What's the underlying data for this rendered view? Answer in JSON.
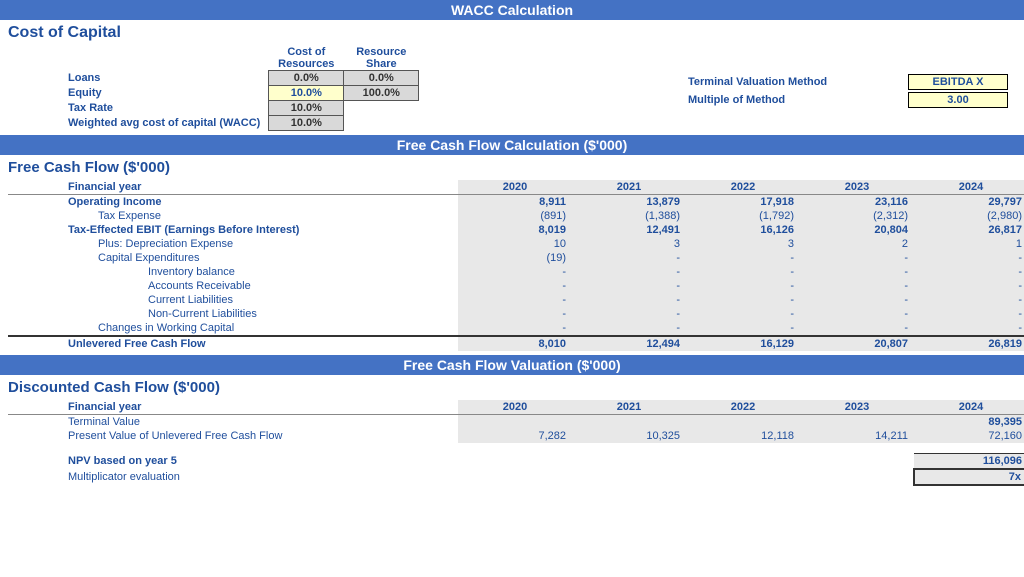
{
  "banners": {
    "wacc": "WACC Calculation",
    "fcf_calc": "Free Cash Flow Calculation ($'000)",
    "fcf_val": "Free Cash Flow Valuation ($'000)"
  },
  "cost_of_capital": {
    "title": "Cost of Capital",
    "headers": {
      "cost": "Cost of Resources",
      "share": "Resource Share"
    },
    "rows": [
      {
        "label": "Loans",
        "cost": "0.0%",
        "share": "0.0%",
        "cost_style": "grey",
        "share_style": "grey"
      },
      {
        "label": "Equity",
        "cost": "10.0%",
        "share": "100.0%",
        "cost_style": "yellow",
        "share_style": "grey"
      },
      {
        "label": "Tax Rate",
        "cost": "10.0%",
        "share": "",
        "cost_style": "grey",
        "share_style": "empty"
      },
      {
        "label": "Weighted avg cost of capital (WACC)",
        "cost": "10.0%",
        "share": "",
        "cost_style": "grey",
        "share_style": "empty"
      }
    ],
    "terminal": {
      "method_label": "Terminal Valuation Method",
      "method_value": "EBITDA X",
      "multiple_label": "Multiple of Method",
      "multiple_value": "3.00"
    }
  },
  "fcf": {
    "title": "Free Cash Flow ($'000)",
    "year_label": "Financial year",
    "years": [
      "2020",
      "2021",
      "2022",
      "2023",
      "2024"
    ],
    "rows": [
      {
        "label": "Operating Income",
        "indent": 0,
        "bold": true,
        "vals": [
          "8,911",
          "13,879",
          "17,918",
          "23,116",
          "29,797"
        ]
      },
      {
        "label": "Tax Expense",
        "indent": 1,
        "bold": false,
        "vals": [
          "(891)",
          "(1,388)",
          "(1,792)",
          "(2,312)",
          "(2,980)"
        ]
      },
      {
        "label": "Tax-Effected EBIT (Earnings Before Interest)",
        "indent": 0,
        "bold": true,
        "vals": [
          "8,019",
          "12,491",
          "16,126",
          "20,804",
          "26,817"
        ]
      },
      {
        "label": "Plus: Depreciation Expense",
        "indent": 1,
        "bold": false,
        "vals": [
          "10",
          "3",
          "3",
          "2",
          "1"
        ]
      },
      {
        "label": "Capital Expenditures",
        "indent": 1,
        "bold": false,
        "vals": [
          "(19)",
          "-",
          "-",
          "-",
          "-"
        ]
      },
      {
        "label": "Inventory balance",
        "indent": 2,
        "bold": false,
        "vals": [
          "-",
          "-",
          "-",
          "-",
          "-"
        ]
      },
      {
        "label": "Accounts Receivable",
        "indent": 2,
        "bold": false,
        "vals": [
          "-",
          "-",
          "-",
          "-",
          "-"
        ]
      },
      {
        "label": "Current Liabilities",
        "indent": 2,
        "bold": false,
        "vals": [
          "-",
          "-",
          "-",
          "-",
          "-"
        ]
      },
      {
        "label": "Non-Current Liabilities",
        "indent": 2,
        "bold": false,
        "vals": [
          "-",
          "-",
          "-",
          "-",
          "-"
        ]
      },
      {
        "label": "Changes in Working Capital",
        "indent": 1,
        "bold": false,
        "vals": [
          "-",
          "-",
          "-",
          "-",
          "-"
        ]
      },
      {
        "label": "Unlevered Free Cash Flow",
        "indent": 0,
        "bold": true,
        "thick": true,
        "vals": [
          "8,010",
          "12,494",
          "16,129",
          "20,807",
          "26,819"
        ]
      }
    ]
  },
  "dcf": {
    "title": "Discounted Cash Flow ($'000)",
    "year_label": "Financial year",
    "years": [
      "2020",
      "2021",
      "2022",
      "2023",
      "2024"
    ],
    "terminal_label": "Terminal Value",
    "terminal_value": "89,395",
    "pv_label": "Present Value of Unlevered Free Cash Flow",
    "pv_vals": [
      "7,282",
      "10,325",
      "12,118",
      "14,211",
      "72,160"
    ],
    "npv_label": "NPV based on year 5",
    "npv_value": "116,096",
    "mult_label": "Multiplicator evaluation",
    "mult_value": "7x"
  },
  "styles": {
    "yellow": "#ffffcc",
    "grey": "#d9d9d9",
    "lightgrey": "#e8e8e8",
    "blue": "#1f4e9c",
    "banner_blue": "#4472c4"
  }
}
